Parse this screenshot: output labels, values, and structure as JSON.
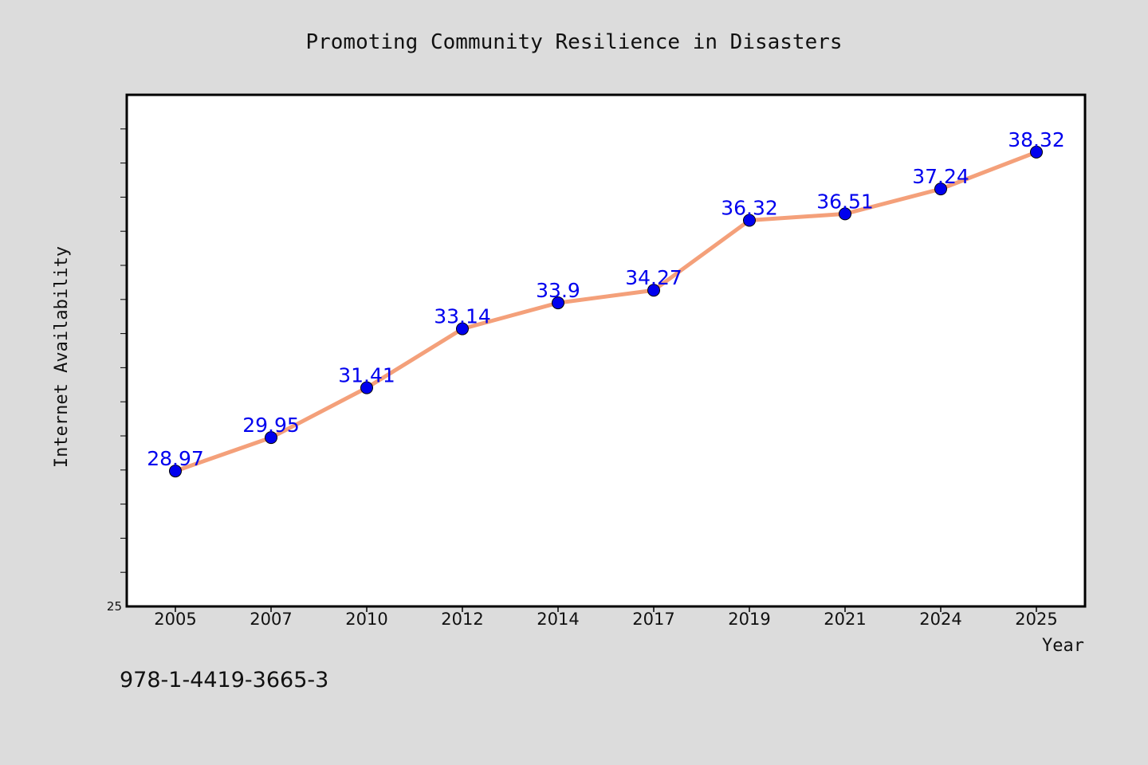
{
  "chart_data": {
    "type": "line",
    "title": "Promoting Community Resilience in Disasters",
    "xlabel": "Year",
    "ylabel": "Internet Availability",
    "categories": [
      "2005",
      "2007",
      "2010",
      "2012",
      "2014",
      "2017",
      "2019",
      "2021",
      "2024",
      "2025"
    ],
    "series": [
      {
        "values": [
          28.97,
          29.95,
          31.41,
          33.14,
          33.9,
          34.27,
          36.32,
          36.51,
          37.24,
          38.32
        ]
      }
    ],
    "data_labels": [
      "28.97",
      "29.95",
      "31.41",
      "33.14",
      "33.9",
      "34.27",
      "36.32",
      "36.51",
      "37.24",
      "38.32"
    ],
    "yticks": [
      "25"
    ],
    "ylim": [
      25,
      40
    ],
    "grid": false,
    "line_color": "#f4a07a",
    "marker_color": "#0000ee",
    "label_color": "#0000ee",
    "plot_background": "#ffffff",
    "page_background": "#dcdcdc"
  },
  "footer": {
    "isbn": "978-1-4419-3665-3"
  }
}
